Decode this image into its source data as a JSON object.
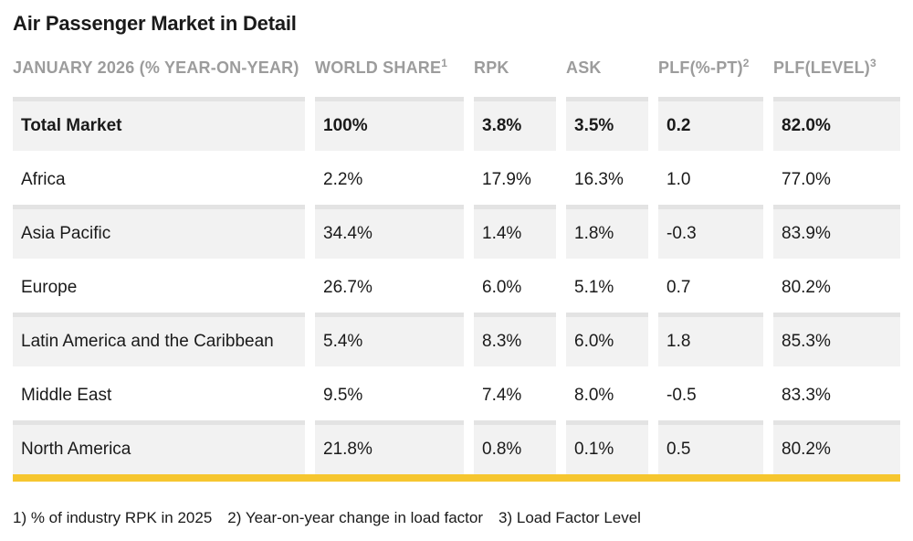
{
  "page_title": "Air Passenger Market in Detail",
  "chart_data": {
    "type": "table",
    "title": "Air Passenger Market in Detail",
    "columns": [
      {
        "key": "region",
        "label": "JANUARY 2026 (% YEAR-ON-YEAR)",
        "sup": ""
      },
      {
        "key": "world-share",
        "label": "WORLD SHARE",
        "sup": "1"
      },
      {
        "key": "rpk",
        "label": "RPK",
        "sup": ""
      },
      {
        "key": "ask",
        "label": "ASK",
        "sup": ""
      },
      {
        "key": "plf-pt",
        "label": "PLF(%-PT)",
        "sup": "2"
      },
      {
        "key": "plf-level",
        "label": "PLF(LEVEL)",
        "sup": "3"
      }
    ],
    "rows": [
      {
        "cells": [
          "Total Market",
          "100%",
          "3.8%",
          "3.5%",
          "0.2",
          "82.0%"
        ],
        "bold": true,
        "striped": true
      },
      {
        "cells": [
          "Africa",
          "2.2%",
          "17.9%",
          "16.3%",
          "1.0",
          "77.0%"
        ],
        "bold": false,
        "striped": false
      },
      {
        "cells": [
          "Asia Pacific",
          "34.4%",
          "1.4%",
          "1.8%",
          "-0.3",
          "83.9%"
        ],
        "bold": false,
        "striped": true
      },
      {
        "cells": [
          "Europe",
          "26.7%",
          "6.0%",
          "5.1%",
          "0.7",
          "80.2%"
        ],
        "bold": false,
        "striped": false
      },
      {
        "cells": [
          "Latin America and the Caribbean",
          "5.4%",
          "8.3%",
          "6.0%",
          "1.8",
          "85.3%"
        ],
        "bold": false,
        "striped": true
      },
      {
        "cells": [
          "Middle East",
          "9.5%",
          "7.4%",
          "8.0%",
          "-0.5",
          "83.3%"
        ],
        "bold": false,
        "striped": false
      },
      {
        "cells": [
          "North America",
          "21.8%",
          "0.8%",
          "0.1%",
          "0.5",
          "80.2%"
        ],
        "bold": false,
        "striped": true
      }
    ]
  },
  "footnotes": [
    "1) % of industry RPK in 2025",
    "2) Year-on-year change in load factor",
    "3) Load Factor Level"
  ],
  "colors": {
    "accent_bar": "#F6C62F",
    "stripe_bg": "#F2F2F2",
    "row_divider": "#E3E3E3",
    "header_text": "#9C9C9C",
    "body_text": "#1A1A1A"
  }
}
